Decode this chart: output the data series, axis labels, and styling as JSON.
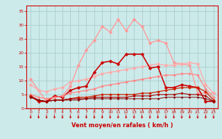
{
  "xlabel": "Vent moyen/en rafales ( km/h )",
  "xlim": [
    -0.5,
    23.5
  ],
  "ylim": [
    0,
    37
  ],
  "yticks": [
    0,
    5,
    10,
    15,
    20,
    25,
    30,
    35
  ],
  "xticks": [
    0,
    1,
    2,
    3,
    4,
    5,
    6,
    7,
    8,
    9,
    10,
    11,
    12,
    13,
    14,
    15,
    16,
    17,
    18,
    19,
    20,
    21,
    22,
    23
  ],
  "bg_color": "#cceaea",
  "grid_color": "#aacccc",
  "series": [
    {
      "name": "light_pink_high",
      "color": "#ff9999",
      "linewidth": 1.0,
      "marker": "D",
      "markersize": 2.5,
      "y": [
        10.5,
        6.5,
        2.5,
        4.0,
        4.5,
        8.0,
        15.5,
        21.0,
        24.5,
        29.5,
        27.5,
        32.0,
        28.0,
        32.0,
        29.5,
        23.5,
        24.5,
        23.5,
        16.5,
        16.0,
        15.5,
        5.5,
        5.5,
        5.5
      ]
    },
    {
      "name": "medium_pink",
      "color": "#ffaaaa",
      "linewidth": 1.0,
      "marker": "D",
      "markersize": 2.5,
      "y": [
        8.5,
        6.5,
        6.0,
        7.0,
        7.5,
        9.5,
        10.0,
        10.5,
        11.5,
        12.5,
        13.0,
        13.5,
        14.0,
        14.5,
        15.0,
        15.5,
        16.0,
        15.5,
        15.5,
        16.0,
        16.5,
        16.0,
        8.5,
        5.5
      ]
    },
    {
      "name": "dark_red_mid",
      "color": "#cc0000",
      "linewidth": 1.2,
      "marker": "D",
      "markersize": 2.5,
      "y": [
        4.5,
        2.5,
        2.5,
        4.5,
        4.0,
        6.5,
        7.5,
        8.0,
        13.0,
        16.5,
        17.0,
        16.0,
        19.5,
        19.5,
        19.5,
        14.5,
        15.0,
        7.5,
        7.5,
        8.5,
        8.0,
        7.5,
        2.5,
        2.5
      ]
    },
    {
      "name": "salmon_diagonal",
      "color": "#ff8888",
      "linewidth": 1.0,
      "marker": "D",
      "markersize": 2.0,
      "y": [
        5.0,
        4.0,
        3.5,
        4.0,
        4.5,
        5.5,
        6.0,
        6.5,
        7.0,
        8.0,
        8.5,
        9.0,
        9.5,
        10.0,
        10.5,
        11.0,
        11.5,
        12.0,
        12.0,
        12.5,
        12.5,
        12.0,
        7.0,
        4.0
      ]
    },
    {
      "name": "dark_red_low1",
      "color": "#cc2200",
      "linewidth": 0.9,
      "marker": "D",
      "markersize": 2.0,
      "y": [
        4.5,
        3.0,
        2.5,
        3.0,
        3.0,
        3.5,
        4.0,
        4.0,
        4.5,
        5.0,
        5.0,
        5.0,
        5.0,
        5.0,
        5.5,
        5.5,
        6.0,
        6.5,
        7.0,
        7.5,
        7.5,
        7.5,
        6.0,
        3.0
      ]
    },
    {
      "name": "dark_red_low2",
      "color": "#aa0000",
      "linewidth": 0.8,
      "marker": "D",
      "markersize": 1.8,
      "y": [
        4.0,
        3.0,
        2.5,
        3.0,
        3.0,
        3.5,
        3.5,
        3.5,
        4.0,
        4.0,
        4.0,
        4.0,
        4.0,
        4.5,
        4.5,
        4.5,
        5.0,
        5.0,
        5.0,
        5.5,
        5.0,
        5.0,
        4.5,
        2.5
      ]
    },
    {
      "name": "dark_red_flat",
      "color": "#880000",
      "linewidth": 0.7,
      "marker": "D",
      "markersize": 1.5,
      "y": [
        4.0,
        3.0,
        2.5,
        3.0,
        3.0,
        3.0,
        3.0,
        3.5,
        3.5,
        3.5,
        3.5,
        3.5,
        3.5,
        3.5,
        3.5,
        3.5,
        3.5,
        4.0,
        4.0,
        4.0,
        4.0,
        4.0,
        3.5,
        2.5
      ]
    }
  ],
  "bottom_line_color": "#cc0000",
  "arrow_color": "#cc0000",
  "tick_color": "#cc0000",
  "label_color": "#cc0000",
  "axis_color": "#cc0000"
}
